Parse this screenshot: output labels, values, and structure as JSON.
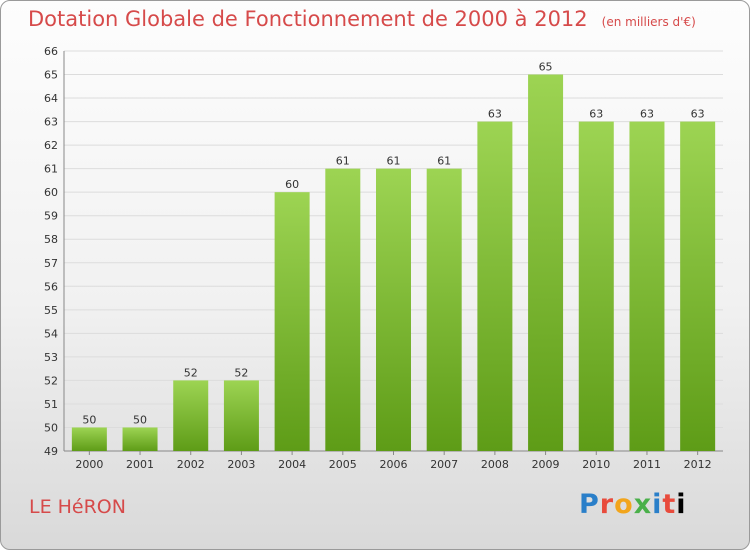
{
  "header": {
    "title": "Dotation Globale de Fonctionnement de 2000 à 2012",
    "units": "(en milliers d'€)"
  },
  "footer": {
    "commune": "LE HéRON",
    "logo_text": "Proxiti"
  },
  "colors": {
    "bar_top": "#9dd453",
    "bar_bottom": "#5e9c17",
    "title": "#d64a4a",
    "grid": "#dcdcdc"
  },
  "chart_data": {
    "type": "bar",
    "categories": [
      "2000",
      "2001",
      "2002",
      "2003",
      "2004",
      "2005",
      "2006",
      "2007",
      "2008",
      "2009",
      "2010",
      "2011",
      "2012"
    ],
    "values": [
      50,
      50,
      52,
      52,
      60,
      61,
      61,
      61,
      63,
      65,
      63,
      63,
      63
    ],
    "title": "Dotation Globale de Fonctionnement de 2000 à 2012",
    "xlabel": "",
    "ylabel": "",
    "ylim": [
      49,
      66
    ],
    "yticks": [
      49,
      50,
      51,
      52,
      53,
      54,
      55,
      56,
      57,
      58,
      59,
      60,
      61,
      62,
      63,
      64,
      65,
      66
    ],
    "grid": true,
    "data_labels": true
  }
}
